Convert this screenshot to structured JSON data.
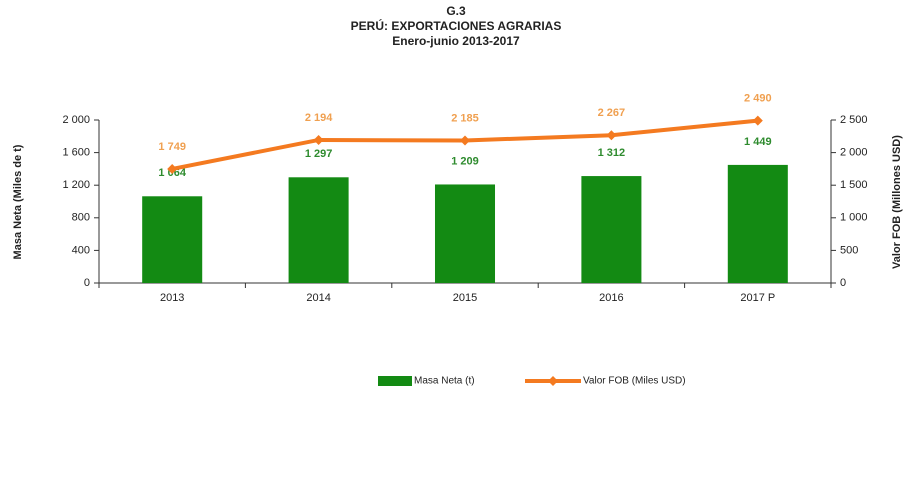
{
  "chart_data": {
    "type": "bar",
    "title": "G.3",
    "subtitle": "PERÚ: EXPORTACIONES AGRARIAS",
    "subtitle2": "Enero-junio 2013-2017",
    "ylabel": "Masa Neta (Miles de t)",
    "y2label": "Valor FOB (Millones USD)",
    "categories": [
      "2013",
      "2014",
      "2015",
      "2016",
      "2017 P"
    ],
    "series": [
      {
        "name": "Masa Neta (t)",
        "color": "#138a13",
        "label_color": "#2e8b2e",
        "values": [
          1064,
          1297,
          1209,
          1312,
          1449
        ],
        "value_labels": [
          "1 064",
          "1 297",
          "1 209",
          "1 312",
          "1 449"
        ]
      },
      {
        "name": "Valor FOB (Miles USD)",
        "type": "line",
        "axis": "y2",
        "color": "#f47a20",
        "label_color": "#f0a050",
        "values": [
          1749,
          2194,
          2185,
          2267,
          2490
        ],
        "value_labels": [
          "1 749",
          "2 194",
          "2 185",
          "2 267",
          "2 490"
        ]
      }
    ],
    "ylim": [
      0,
      2000
    ],
    "yticks": [
      0,
      400,
      800,
      {
        "value": 1200,
        "label": "1 200"
      },
      {
        "value": 1600,
        "label": "1 600"
      },
      {
        "value": 2000,
        "label": "2 000"
      }
    ],
    "y2lim": [
      0,
      2500
    ],
    "y2ticks": [
      0,
      500,
      {
        "value": 1000,
        "label": "1 000"
      },
      {
        "value": 1500,
        "label": "1 500"
      },
      {
        "value": 2000,
        "label": "2 000"
      },
      {
        "value": 2500,
        "label": "2 500"
      }
    ],
    "legend": "bottom"
  }
}
